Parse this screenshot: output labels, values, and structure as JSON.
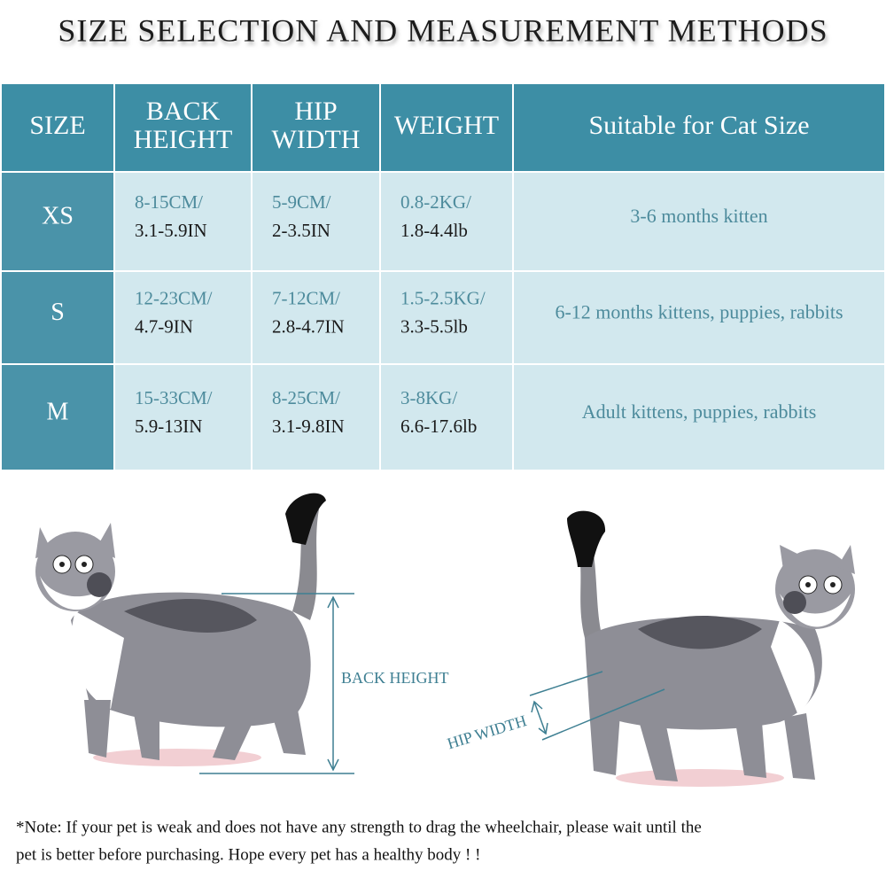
{
  "title": "SIZE SELECTION AND MEASUREMENT METHODS",
  "table": {
    "header": [
      [
        "SIZE"
      ],
      [
        "BACK",
        "HEIGHT"
      ],
      [
        "HIP",
        "WIDTH"
      ],
      [
        "WEIGHT"
      ],
      [
        "Suitable for Cat Size"
      ]
    ],
    "rows": [
      [
        [
          "XS"
        ],
        [
          "8-15CM/",
          "3.1-5.9IN"
        ],
        [
          "5-9CM/",
          "2-3.5IN"
        ],
        [
          "0.8-2KG/",
          "1.8-4.4lb"
        ],
        [
          "3-6 months kitten"
        ]
      ],
      [
        [
          "S"
        ],
        [
          "12-23CM/",
          "4.7-9IN"
        ],
        [
          "7-12CM/",
          "2.8-4.7IN"
        ],
        [
          "1.5-2.5KG/",
          "3.3-5.5lb"
        ],
        [
          "6-12 months kittens, puppies, rabbits"
        ]
      ],
      [
        [
          "M"
        ],
        [
          "15-33CM/",
          "5.9-13IN"
        ],
        [
          "8-25CM/",
          "3.1-9.8IN"
        ],
        [
          "3-8KG/",
          "6.6-17.6lb"
        ],
        [
          "Adult kittens, puppies, rabbits"
        ]
      ]
    ]
  },
  "diagram": {
    "back_height": "BACK HEIGHT",
    "hip_width": "HIP WIDTH"
  },
  "note": [
    "*Note: If your pet is weak and does not have any strength to drag the wheelchair, please wait until the",
    "pet is better before purchasing. Hope every pet has a healthy body ! !"
  ]
}
